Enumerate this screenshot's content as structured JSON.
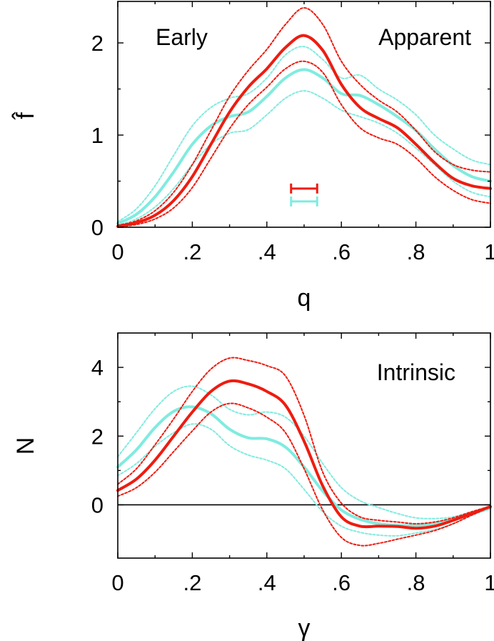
{
  "colors": {
    "red": "#ee1c10",
    "cyan": "#7fecdf",
    "axis": "#000000"
  },
  "chart_data": [
    {
      "type": "line",
      "id": "apparent",
      "title": "",
      "xlabel": "q",
      "ylabel": "f̂",
      "xlim": [
        0,
        1
      ],
      "ylim": [
        0,
        2.45
      ],
      "xticks": [
        0,
        0.2,
        0.4,
        0.6,
        0.8,
        1
      ],
      "xtick_labels": [
        "0",
        ".2",
        ".4",
        ".6",
        ".8",
        "1"
      ],
      "yticks": [
        0,
        1,
        2
      ],
      "ytick_labels": [
        "0",
        "1",
        "2"
      ],
      "zero_line": false,
      "annotations": [
        {
          "text": "Early",
          "position": "top-left"
        },
        {
          "text": "Apparent",
          "position": "top-right"
        }
      ],
      "series": [
        {
          "name": "cyan-upper",
          "color": "cyan",
          "style": "dotted",
          "x": [
            0,
            0.05,
            0.1,
            0.15,
            0.2,
            0.25,
            0.3,
            0.35,
            0.4,
            0.45,
            0.5,
            0.55,
            0.6,
            0.65,
            0.7,
            0.75,
            0.8,
            0.85,
            0.9,
            0.95,
            1.0
          ],
          "y": [
            0.06,
            0.2,
            0.45,
            0.78,
            1.1,
            1.3,
            1.4,
            1.45,
            1.62,
            1.87,
            1.96,
            1.82,
            1.62,
            1.65,
            1.5,
            1.38,
            1.22,
            1.0,
            0.85,
            0.73,
            0.68
          ]
        },
        {
          "name": "cyan-median",
          "color": "cyan",
          "style": "solid",
          "x": [
            0,
            0.05,
            0.1,
            0.15,
            0.2,
            0.25,
            0.3,
            0.35,
            0.4,
            0.45,
            0.5,
            0.55,
            0.6,
            0.65,
            0.7,
            0.75,
            0.8,
            0.85,
            0.9,
            0.95,
            1.0
          ],
          "y": [
            0.04,
            0.14,
            0.33,
            0.6,
            0.9,
            1.1,
            1.2,
            1.25,
            1.42,
            1.62,
            1.71,
            1.62,
            1.45,
            1.43,
            1.33,
            1.2,
            1.05,
            0.85,
            0.67,
            0.55,
            0.5
          ]
        },
        {
          "name": "cyan-lower",
          "color": "cyan",
          "style": "dotted",
          "x": [
            0,
            0.05,
            0.1,
            0.15,
            0.2,
            0.25,
            0.3,
            0.35,
            0.4,
            0.45,
            0.5,
            0.55,
            0.6,
            0.65,
            0.7,
            0.75,
            0.8,
            0.85,
            0.9,
            0.95,
            1.0
          ],
          "y": [
            0.02,
            0.09,
            0.22,
            0.42,
            0.68,
            0.9,
            1.02,
            1.06,
            1.22,
            1.4,
            1.48,
            1.4,
            1.27,
            1.2,
            1.13,
            1.02,
            0.86,
            0.68,
            0.5,
            0.38,
            0.33
          ]
        },
        {
          "name": "red-upper",
          "color": "red",
          "style": "dotted",
          "x": [
            0,
            0.05,
            0.1,
            0.15,
            0.2,
            0.25,
            0.3,
            0.35,
            0.4,
            0.45,
            0.5,
            0.55,
            0.6,
            0.65,
            0.7,
            0.75,
            0.8,
            0.85,
            0.9,
            0.95,
            1.0
          ],
          "y": [
            0.02,
            0.07,
            0.18,
            0.38,
            0.68,
            1.05,
            1.42,
            1.7,
            1.93,
            2.2,
            2.38,
            2.2,
            1.8,
            1.55,
            1.38,
            1.25,
            1.05,
            0.82,
            0.68,
            0.62,
            0.6
          ]
        },
        {
          "name": "red-median",
          "color": "red",
          "style": "solid",
          "x": [
            0,
            0.05,
            0.1,
            0.15,
            0.2,
            0.25,
            0.3,
            0.35,
            0.4,
            0.45,
            0.5,
            0.55,
            0.6,
            0.65,
            0.7,
            0.75,
            0.8,
            0.85,
            0.9,
            0.95,
            1.0
          ],
          "y": [
            0.01,
            0.05,
            0.13,
            0.29,
            0.55,
            0.9,
            1.25,
            1.52,
            1.72,
            1.95,
            2.08,
            1.92,
            1.55,
            1.3,
            1.18,
            1.08,
            0.9,
            0.7,
            0.53,
            0.45,
            0.42
          ]
        },
        {
          "name": "red-lower",
          "color": "red",
          "style": "dotted",
          "x": [
            0,
            0.05,
            0.1,
            0.15,
            0.2,
            0.25,
            0.3,
            0.35,
            0.4,
            0.45,
            0.5,
            0.55,
            0.6,
            0.65,
            0.7,
            0.75,
            0.8,
            0.85,
            0.9,
            0.95,
            1.0
          ],
          "y": [
            0.005,
            0.03,
            0.09,
            0.21,
            0.43,
            0.75,
            1.07,
            1.33,
            1.52,
            1.72,
            1.8,
            1.68,
            1.33,
            1.08,
            0.97,
            0.9,
            0.75,
            0.55,
            0.4,
            0.3,
            0.26
          ]
        }
      ],
      "error_bars": [
        {
          "color": "red",
          "x_from": 0.465,
          "x_to": 0.535,
          "y": 0.42
        },
        {
          "color": "cyan",
          "x_from": 0.465,
          "x_to": 0.535,
          "y": 0.28
        }
      ]
    },
    {
      "type": "line",
      "id": "intrinsic",
      "title": "",
      "xlabel": "γ",
      "ylabel": "N",
      "xlim": [
        0,
        1
      ],
      "ylim": [
        -1.55,
        5.0
      ],
      "xticks": [
        0,
        0.2,
        0.4,
        0.6,
        0.8,
        1
      ],
      "xtick_labels": [
        "0",
        ".2",
        ".4",
        ".6",
        ".8",
        "1"
      ],
      "yticks": [
        0,
        2,
        4
      ],
      "ytick_labels": [
        "0",
        "2",
        "4"
      ],
      "zero_line": true,
      "annotations": [
        {
          "text": "Intrinsic",
          "position": "top-right"
        }
      ],
      "series": [
        {
          "name": "cyan-upper",
          "color": "cyan",
          "style": "dotted",
          "x": [
            0,
            0.05,
            0.1,
            0.15,
            0.2,
            0.25,
            0.3,
            0.35,
            0.4,
            0.45,
            0.5,
            0.55,
            0.6,
            0.65,
            0.7,
            0.75,
            0.8,
            0.85,
            0.9,
            0.95,
            1.0
          ],
          "y": [
            1.4,
            2.1,
            2.8,
            3.3,
            3.45,
            3.2,
            2.78,
            2.62,
            2.7,
            2.55,
            2.0,
            1.2,
            0.5,
            0.12,
            -0.08,
            -0.25,
            -0.38,
            -0.4,
            -0.35,
            -0.2,
            -0.05
          ]
        },
        {
          "name": "cyan-median",
          "color": "cyan",
          "style": "solid",
          "x": [
            0,
            0.05,
            0.1,
            0.15,
            0.2,
            0.25,
            0.3,
            0.35,
            0.4,
            0.45,
            0.5,
            0.55,
            0.6,
            0.65,
            0.7,
            0.75,
            0.8,
            0.85,
            0.9,
            0.95,
            1.0
          ],
          "y": [
            1.1,
            1.6,
            2.25,
            2.72,
            2.85,
            2.65,
            2.2,
            1.95,
            1.92,
            1.68,
            1.1,
            0.4,
            -0.15,
            -0.42,
            -0.55,
            -0.6,
            -0.6,
            -0.55,
            -0.42,
            -0.25,
            -0.08
          ]
        },
        {
          "name": "cyan-lower",
          "color": "cyan",
          "style": "dotted",
          "x": [
            0,
            0.05,
            0.1,
            0.15,
            0.2,
            0.25,
            0.3,
            0.35,
            0.4,
            0.45,
            0.5,
            0.55,
            0.6,
            0.65,
            0.7,
            0.75,
            0.8,
            0.85,
            0.9,
            0.95,
            1.0
          ],
          "y": [
            0.85,
            1.2,
            1.7,
            2.1,
            2.35,
            2.2,
            1.72,
            1.45,
            1.3,
            1.05,
            0.45,
            -0.2,
            -0.62,
            -0.8,
            -0.88,
            -0.9,
            -0.82,
            -0.72,
            -0.55,
            -0.3,
            -0.12
          ]
        },
        {
          "name": "red-upper",
          "color": "red",
          "style": "dotted",
          "x": [
            0,
            0.05,
            0.1,
            0.15,
            0.2,
            0.25,
            0.3,
            0.35,
            0.4,
            0.45,
            0.5,
            0.55,
            0.6,
            0.65,
            0.7,
            0.75,
            0.8,
            0.85,
            0.9,
            0.95,
            1.0
          ],
          "y": [
            0.6,
            1.05,
            1.75,
            2.5,
            3.3,
            3.95,
            4.27,
            4.2,
            4.05,
            3.75,
            2.6,
            0.95,
            0.05,
            -0.35,
            -0.45,
            -0.5,
            -0.55,
            -0.5,
            -0.38,
            -0.2,
            -0.04
          ]
        },
        {
          "name": "red-median",
          "color": "red",
          "style": "solid",
          "x": [
            0,
            0.05,
            0.1,
            0.15,
            0.2,
            0.25,
            0.3,
            0.35,
            0.4,
            0.45,
            0.5,
            0.55,
            0.6,
            0.65,
            0.7,
            0.75,
            0.8,
            0.85,
            0.9,
            0.95,
            1.0
          ],
          "y": [
            0.42,
            0.75,
            1.3,
            2.0,
            2.7,
            3.3,
            3.6,
            3.52,
            3.3,
            2.9,
            1.85,
            0.55,
            -0.35,
            -0.62,
            -0.62,
            -0.63,
            -0.68,
            -0.62,
            -0.45,
            -0.25,
            -0.05
          ]
        },
        {
          "name": "red-lower",
          "color": "red",
          "style": "dotted",
          "x": [
            0,
            0.05,
            0.1,
            0.15,
            0.2,
            0.25,
            0.3,
            0.35,
            0.4,
            0.45,
            0.5,
            0.55,
            0.6,
            0.65,
            0.7,
            0.75,
            0.8,
            0.85,
            0.9,
            0.95,
            1.0
          ],
          "y": [
            0.25,
            0.5,
            0.95,
            1.55,
            2.15,
            2.7,
            2.95,
            2.82,
            2.55,
            2.1,
            1.05,
            -0.15,
            -0.95,
            -1.18,
            -1.12,
            -1.0,
            -0.88,
            -0.75,
            -0.55,
            -0.3,
            -0.06
          ]
        }
      ],
      "error_bars": []
    }
  ]
}
